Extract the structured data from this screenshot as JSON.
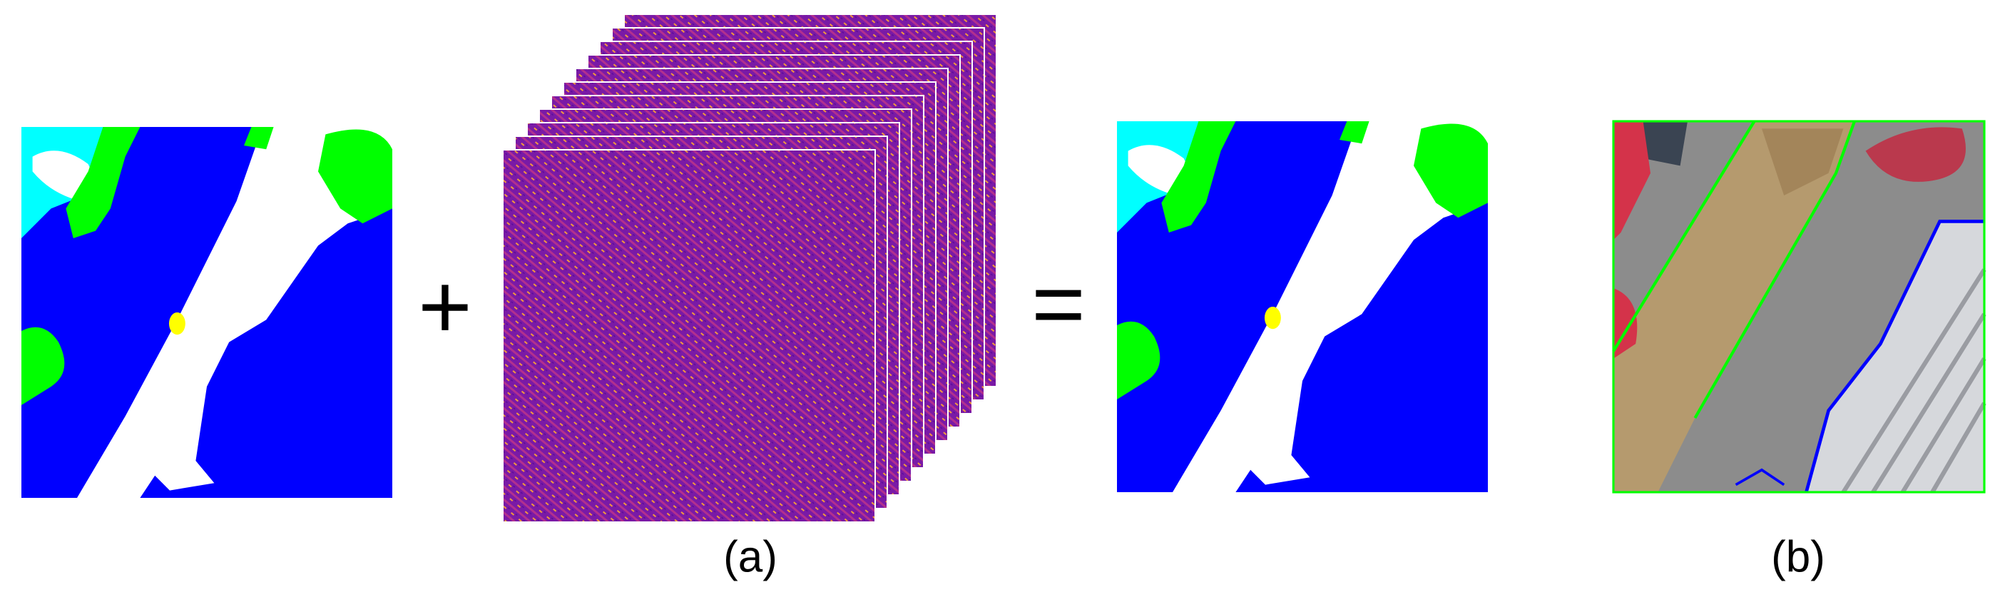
{
  "operators": {
    "plus": "+",
    "equals": "="
  },
  "captions": {
    "a": "(a)",
    "b": "(b)"
  }
}
